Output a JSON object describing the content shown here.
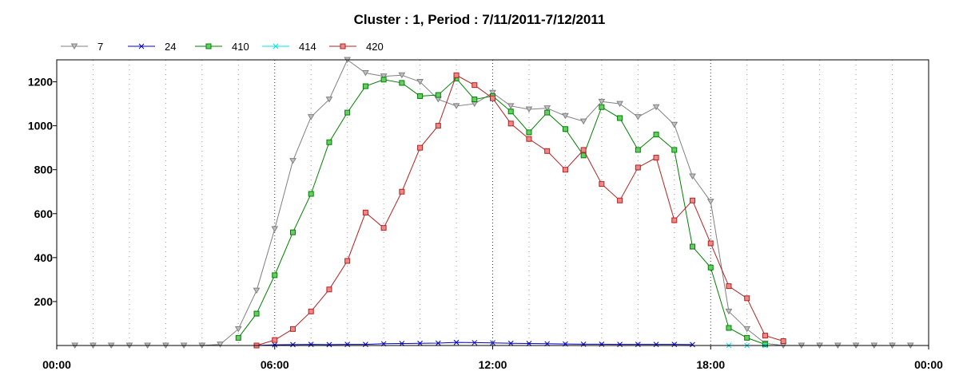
{
  "chart_data": {
    "type": "line",
    "title": "Cluster : 1, Period : 7/11/2011-7/12/2011",
    "xlabel": "",
    "ylabel": "",
    "x_ticks": [
      "00:00",
      "06:00",
      "12:00",
      "18:00",
      "00:00"
    ],
    "y_ticks": [
      200,
      400,
      600,
      800,
      1000,
      1200
    ],
    "xlim": [
      "00:00",
      "24:00"
    ],
    "ylim": [
      0,
      1300
    ],
    "grid": "vertical dotted",
    "legend_position": "top-left",
    "x": [
      "00:30",
      "01:00",
      "01:30",
      "02:00",
      "02:30",
      "03:00",
      "03:30",
      "04:00",
      "04:30",
      "05:00",
      "05:30",
      "06:00",
      "06:30",
      "07:00",
      "07:30",
      "08:00",
      "08:30",
      "09:00",
      "09:30",
      "10:00",
      "10:30",
      "11:00",
      "11:30",
      "12:00",
      "12:30",
      "13:00",
      "13:30",
      "14:00",
      "14:30",
      "15:00",
      "15:30",
      "16:00",
      "16:30",
      "17:00",
      "17:30",
      "18:00",
      "18:30",
      "19:00",
      "19:30",
      "20:00",
      "20:30",
      "21:00",
      "21:30",
      "22:00",
      "22:30",
      "23:00",
      "23:30"
    ],
    "series": [
      {
        "name": "7",
        "color": "#808080",
        "marker": "triangle-down",
        "values": [
          0,
          0,
          0,
          0,
          0,
          0,
          0,
          0,
          5,
          75,
          250,
          530,
          840,
          1040,
          1120,
          1300,
          1240,
          1225,
          1230,
          1200,
          1120,
          1090,
          1100,
          1150,
          1090,
          1075,
          1080,
          1045,
          1020,
          1110,
          1100,
          1040,
          1085,
          1005,
          770,
          655,
          155,
          75,
          10,
          0,
          0,
          0,
          0,
          0,
          0,
          0,
          0
        ]
      },
      {
        "name": "24",
        "color": "#0000cc",
        "marker": "x",
        "values": [
          null,
          null,
          null,
          null,
          null,
          null,
          null,
          null,
          null,
          null,
          0,
          3,
          4,
          5,
          4,
          5,
          5,
          8,
          9,
          10,
          11,
          14,
          13,
          12,
          10,
          9,
          8,
          7,
          6,
          6,
          5,
          5,
          5,
          5,
          4,
          null,
          null,
          null,
          null,
          null,
          null,
          null,
          null,
          null,
          null,
          null,
          null
        ]
      },
      {
        "name": "410",
        "color": "#008000",
        "fill": "#66cc66",
        "marker": "square",
        "values": [
          null,
          null,
          null,
          null,
          null,
          null,
          null,
          null,
          null,
          35,
          145,
          320,
          515,
          690,
          925,
          1060,
          1180,
          1210,
          1195,
          1135,
          1140,
          1215,
          1120,
          1135,
          1065,
          970,
          1060,
          985,
          865,
          1085,
          1035,
          890,
          960,
          890,
          450,
          355,
          80,
          35,
          5,
          null,
          null,
          null,
          null,
          null,
          null,
          null,
          null
        ]
      },
      {
        "name": "414",
        "color": "#00e5e5",
        "marker": "x",
        "values": [
          null,
          null,
          null,
          null,
          null,
          null,
          null,
          null,
          null,
          null,
          null,
          null,
          null,
          null,
          null,
          null,
          null,
          null,
          null,
          null,
          null,
          null,
          null,
          null,
          null,
          null,
          null,
          null,
          null,
          null,
          null,
          null,
          null,
          null,
          null,
          null,
          0,
          0,
          0,
          null,
          null,
          null,
          null,
          null,
          null,
          null,
          null
        ]
      },
      {
        "name": "420",
        "color": "#b22222",
        "fill": "#ee8888",
        "marker": "square",
        "values": [
          null,
          null,
          null,
          null,
          null,
          null,
          null,
          null,
          null,
          null,
          0,
          25,
          75,
          155,
          255,
          385,
          605,
          535,
          700,
          900,
          1000,
          1230,
          1185,
          1125,
          1010,
          940,
          885,
          800,
          890,
          735,
          660,
          810,
          855,
          570,
          660,
          465,
          270,
          215,
          45,
          20,
          null,
          null,
          null,
          null,
          null,
          null,
          null
        ]
      }
    ]
  }
}
